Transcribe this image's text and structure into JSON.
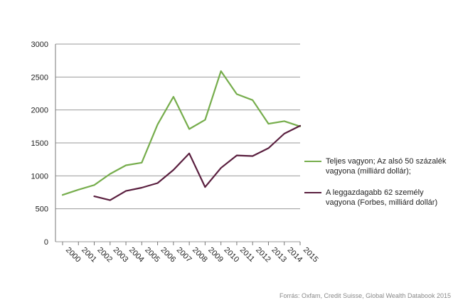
{
  "chart_data": {
    "type": "line",
    "x": [
      "2000",
      "2001",
      "2002",
      "2003",
      "2004",
      "2005",
      "2006",
      "2007",
      "2008",
      "2009",
      "2010",
      "2011",
      "2012",
      "2013",
      "2014",
      "2015"
    ],
    "ylim": [
      0,
      3000
    ],
    "yticks": [
      0,
      500,
      1000,
      1500,
      2000,
      2500,
      3000
    ],
    "grid": true,
    "legend_position": "right",
    "series": [
      {
        "name": "Teljes vagyon; Az alsó 50 százalék vagyona (milliárd dollár);",
        "color": "#76ad4c",
        "values": [
          710,
          790,
          860,
          1030,
          1160,
          1200,
          1780,
          2200,
          1710,
          1850,
          2590,
          2240,
          2150,
          1790,
          1830,
          1750
        ]
      },
      {
        "name": "A leggazdagabb 62 személy vagyona (Forbes, milliárd dollár)",
        "color": "#5a1f3f",
        "values": [
          null,
          null,
          690,
          630,
          770,
          820,
          890,
          1090,
          1340,
          830,
          1120,
          1310,
          1300,
          1420,
          1640,
          1760
        ]
      }
    ]
  },
  "source": "Forrás: Oxfam, Credit Suisse, Global Wealth Databook 2015"
}
